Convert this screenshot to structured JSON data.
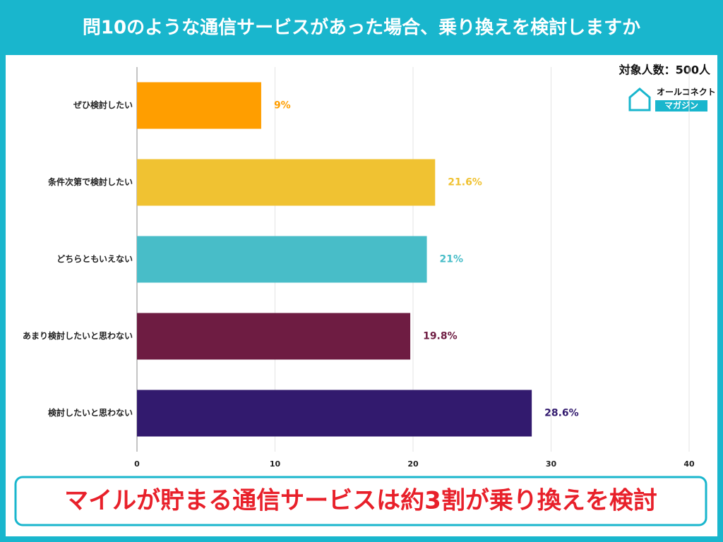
{
  "chart_data": {
    "type": "bar",
    "orientation": "horizontal",
    "title": "問10のような通信サービスがあった場合、乗り換えを検討しますか",
    "note": "対象人数：500人",
    "banner": "マイルが貯まる通信サービスは約3割が乗り換えを検討",
    "categories": [
      "ぜひ検討したい",
      "条件次第で検討したい",
      "どちらともいえない",
      "あまり検討したいと思わない",
      "検討したいと思わない"
    ],
    "values": [
      9,
      21.6,
      21,
      19.8,
      28.6
    ],
    "value_labels": [
      "9%",
      "21.6%",
      "21%",
      "19.8%",
      "28.6%"
    ],
    "colors": [
      "#ff9e00",
      "#f0c232",
      "#48bdc8",
      "#6e1c42",
      "#321a6e"
    ],
    "xlim": [
      0,
      40
    ],
    "xticks": [
      0,
      10,
      20,
      30,
      40
    ],
    "grid": true
  },
  "logo": {
    "name": "オールコネクト",
    "sub": "マガジン"
  }
}
